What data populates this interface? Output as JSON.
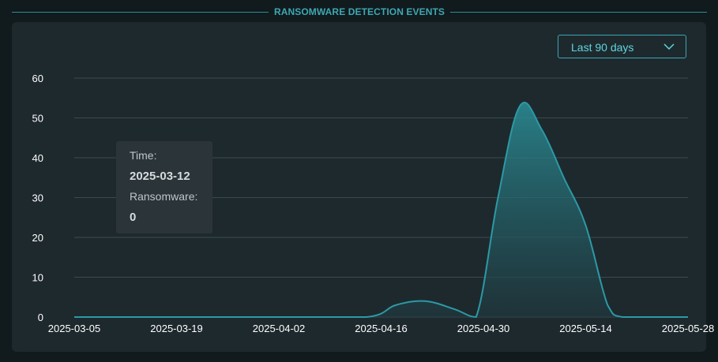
{
  "header": {
    "title": "RANSOMWARE DETECTION EVENTS"
  },
  "range_select": {
    "selected": "Last 90 days",
    "icon": "chevron-down-icon"
  },
  "colors": {
    "accent": "#3aa6b0",
    "line": "#2b9aa5",
    "fill_top": "#2b8f98",
    "grid": "#3a4a50",
    "text": "#ffffff"
  },
  "chart_data": {
    "type": "area",
    "title": "",
    "xlabel": "",
    "ylabel": "",
    "ylim": [
      0,
      60
    ],
    "yticks": [
      0,
      10,
      20,
      30,
      40,
      50,
      60
    ],
    "xlim": [
      "2025-03-05",
      "2025-05-28"
    ],
    "xticks": [
      "2025-03-05",
      "2025-03-19",
      "2025-04-02",
      "2025-04-16",
      "2025-04-30",
      "2025-05-14",
      "2025-05-28"
    ],
    "grid": true,
    "series": [
      {
        "name": "Ransomware",
        "x": [
          "2025-03-05",
          "2025-03-19",
          "2025-04-02",
          "2025-04-14",
          "2025-04-18",
          "2025-04-22",
          "2025-04-26",
          "2025-04-29",
          "2025-05-02",
          "2025-05-05",
          "2025-05-08",
          "2025-05-11",
          "2025-05-14",
          "2025-05-17",
          "2025-05-19",
          "2025-05-24",
          "2025-05-28"
        ],
        "values": [
          0,
          0,
          0,
          0,
          3,
          4,
          2,
          0,
          30,
          53,
          47,
          35,
          23,
          3,
          0,
          0,
          0
        ]
      }
    ]
  },
  "tooltip": {
    "time_label": "Time:",
    "time_value": "2025-03-12",
    "series_label": "Ransomware:",
    "series_value": "0"
  }
}
